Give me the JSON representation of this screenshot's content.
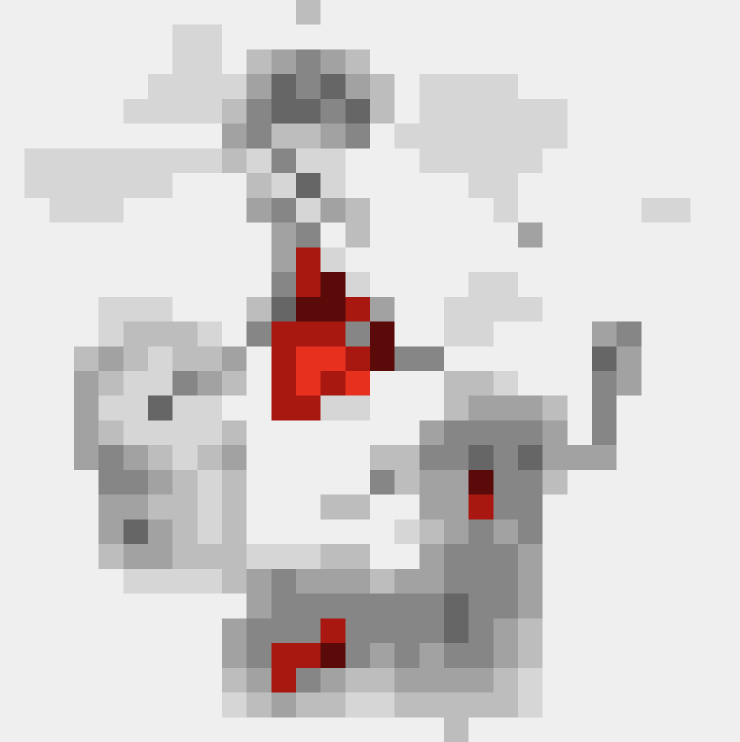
{
  "chart_data": {
    "type": "heatmap",
    "colors": [
      "#ffffff",
      "#efefef",
      "#d6d6d6",
      "#bdbdbd",
      "#a2a2a2",
      "#868686",
      "#666666",
      "#4a4a4a",
      "#5a0a08",
      "#a81810",
      "#e8301f"
    ],
    "values": [
      [
        1,
        1,
        1,
        1,
        1,
        1,
        1,
        1,
        1,
        1,
        1,
        1,
        3,
        1,
        1,
        1,
        1,
        1,
        1,
        1,
        1,
        1,
        1,
        1,
        1,
        1,
        1,
        1,
        1,
        1
      ],
      [
        1,
        1,
        1,
        1,
        1,
        1,
        1,
        2,
        2,
        1,
        1,
        1,
        1,
        1,
        1,
        1,
        1,
        1,
        1,
        1,
        1,
        1,
        1,
        1,
        1,
        1,
        1,
        1,
        1,
        1
      ],
      [
        1,
        1,
        1,
        1,
        1,
        1,
        1,
        2,
        2,
        1,
        3,
        4,
        5,
        4,
        3,
        1,
        1,
        1,
        1,
        1,
        1,
        1,
        1,
        1,
        1,
        1,
        1,
        1,
        1,
        1
      ],
      [
        1,
        1,
        1,
        1,
        1,
        1,
        2,
        2,
        2,
        2,
        4,
        6,
        5,
        6,
        4,
        3,
        1,
        2,
        2,
        2,
        2,
        1,
        1,
        1,
        1,
        1,
        1,
        1,
        1,
        1
      ],
      [
        1,
        1,
        1,
        1,
        1,
        2,
        2,
        2,
        2,
        3,
        5,
        6,
        6,
        5,
        6,
        3,
        1,
        2,
        2,
        2,
        2,
        2,
        2,
        1,
        1,
        1,
        1,
        1,
        1,
        1
      ],
      [
        1,
        1,
        1,
        1,
        1,
        1,
        1,
        1,
        1,
        4,
        5,
        3,
        3,
        4,
        5,
        1,
        2,
        2,
        2,
        2,
        2,
        2,
        2,
        1,
        1,
        1,
        1,
        1,
        1,
        1
      ],
      [
        1,
        2,
        2,
        2,
        2,
        2,
        2,
        2,
        2,
        3,
        2,
        5,
        2,
        2,
        1,
        1,
        1,
        2,
        2,
        2,
        2,
        2,
        1,
        1,
        1,
        1,
        1,
        1,
        1,
        1
      ],
      [
        1,
        2,
        2,
        2,
        2,
        2,
        2,
        1,
        1,
        1,
        3,
        2,
        6,
        2,
        1,
        1,
        1,
        1,
        1,
        2,
        2,
        1,
        1,
        1,
        1,
        1,
        1,
        1,
        1,
        1
      ],
      [
        1,
        1,
        2,
        2,
        2,
        1,
        1,
        1,
        1,
        1,
        4,
        5,
        2,
        4,
        3,
        1,
        1,
        1,
        1,
        1,
        2,
        1,
        1,
        1,
        1,
        1,
        2,
        2,
        1,
        1
      ],
      [
        1,
        1,
        1,
        1,
        1,
        1,
        1,
        1,
        1,
        1,
        1,
        4,
        5,
        1,
        3,
        1,
        1,
        1,
        1,
        1,
        1,
        4,
        1,
        1,
        1,
        1,
        1,
        1,
        1,
        1
      ],
      [
        1,
        1,
        1,
        1,
        1,
        1,
        1,
        1,
        1,
        1,
        1,
        4,
        9,
        2,
        1,
        1,
        1,
        1,
        1,
        1,
        1,
        1,
        1,
        1,
        1,
        1,
        1,
        1,
        1,
        1
      ],
      [
        1,
        1,
        1,
        1,
        1,
        1,
        1,
        1,
        1,
        1,
        1,
        5,
        9,
        8,
        2,
        1,
        1,
        1,
        1,
        2,
        2,
        1,
        1,
        1,
        1,
        1,
        1,
        1,
        1,
        1
      ],
      [
        1,
        1,
        1,
        1,
        2,
        2,
        2,
        1,
        1,
        1,
        3,
        6,
        8,
        8,
        9,
        4,
        1,
        1,
        2,
        2,
        2,
        2,
        1,
        1,
        1,
        1,
        1,
        1,
        1,
        1
      ],
      [
        1,
        1,
        1,
        1,
        2,
        3,
        3,
        3,
        2,
        1,
        5,
        9,
        9,
        9,
        5,
        8,
        1,
        1,
        2,
        2,
        1,
        1,
        1,
        1,
        4,
        5,
        1,
        1,
        1,
        1
      ],
      [
        1,
        1,
        1,
        3,
        4,
        3,
        2,
        3,
        3,
        4,
        1,
        9,
        10,
        10,
        9,
        8,
        5,
        5,
        1,
        1,
        1,
        1,
        1,
        1,
        6,
        4,
        1,
        1,
        1,
        1
      ],
      [
        1,
        1,
        1,
        4,
        3,
        2,
        2,
        5,
        4,
        3,
        1,
        9,
        10,
        9,
        10,
        1,
        1,
        1,
        3,
        3,
        2,
        1,
        1,
        1,
        5,
        4,
        1,
        1,
        1,
        1
      ],
      [
        1,
        1,
        1,
        4,
        2,
        2,
        6,
        2,
        2,
        1,
        1,
        9,
        9,
        2,
        2,
        1,
        1,
        1,
        3,
        4,
        4,
        4,
        3,
        1,
        5,
        1,
        1,
        1,
        1,
        1
      ],
      [
        1,
        1,
        1,
        4,
        3,
        2,
        2,
        2,
        2,
        3,
        1,
        1,
        1,
        1,
        1,
        1,
        1,
        4,
        5,
        5,
        5,
        5,
        4,
        1,
        5,
        1,
        1,
        1,
        1,
        1
      ],
      [
        1,
        1,
        1,
        4,
        5,
        4,
        3,
        2,
        3,
        4,
        1,
        1,
        1,
        1,
        1,
        3,
        3,
        5,
        5,
        6,
        5,
        6,
        4,
        4,
        4,
        1,
        1,
        1,
        1,
        1
      ],
      [
        1,
        1,
        1,
        1,
        5,
        5,
        4,
        3,
        2,
        3,
        1,
        1,
        1,
        1,
        1,
        5,
        3,
        4,
        4,
        8,
        5,
        5,
        3,
        1,
        1,
        1,
        1,
        1,
        1,
        1
      ],
      [
        1,
        1,
        1,
        1,
        4,
        4,
        3,
        3,
        2,
        3,
        1,
        1,
        1,
        3,
        3,
        1,
        1,
        4,
        4,
        9,
        5,
        5,
        1,
        1,
        1,
        1,
        1,
        1,
        1,
        1
      ],
      [
        1,
        1,
        1,
        1,
        4,
        6,
        4,
        3,
        2,
        3,
        1,
        1,
        1,
        1,
        1,
        1,
        2,
        3,
        4,
        5,
        4,
        5,
        1,
        1,
        1,
        1,
        1,
        1,
        1,
        1
      ],
      [
        1,
        1,
        1,
        1,
        3,
        4,
        4,
        3,
        3,
        3,
        2,
        2,
        2,
        3,
        3,
        1,
        1,
        4,
        5,
        5,
        5,
        4,
        1,
        1,
        1,
        1,
        1,
        1,
        1,
        1
      ],
      [
        1,
        1,
        1,
        1,
        1,
        2,
        2,
        2,
        2,
        3,
        4,
        5,
        4,
        4,
        4,
        3,
        4,
        4,
        5,
        5,
        5,
        4,
        1,
        1,
        1,
        1,
        1,
        1,
        1,
        1
      ],
      [
        1,
        1,
        1,
        1,
        1,
        1,
        1,
        1,
        1,
        1,
        4,
        5,
        5,
        5,
        5,
        5,
        5,
        5,
        6,
        5,
        5,
        4,
        1,
        1,
        1,
        1,
        1,
        1,
        1,
        1
      ],
      [
        1,
        1,
        1,
        1,
        1,
        1,
        1,
        1,
        1,
        4,
        5,
        5,
        5,
        9,
        5,
        5,
        5,
        5,
        6,
        5,
        4,
        3,
        1,
        1,
        1,
        1,
        1,
        1,
        1,
        1
      ],
      [
        1,
        1,
        1,
        1,
        1,
        1,
        1,
        1,
        1,
        4,
        5,
        9,
        9,
        8,
        5,
        4,
        5,
        4,
        5,
        5,
        4,
        3,
        1,
        1,
        1,
        1,
        1,
        1,
        1,
        1
      ],
      [
        1,
        1,
        1,
        1,
        1,
        1,
        1,
        1,
        1,
        3,
        4,
        9,
        5,
        4,
        3,
        3,
        4,
        4,
        4,
        4,
        3,
        2,
        1,
        1,
        1,
        1,
        1,
        1,
        1,
        1
      ],
      [
        1,
        1,
        1,
        1,
        1,
        1,
        1,
        1,
        1,
        2,
        3,
        4,
        3,
        3,
        2,
        2,
        3,
        3,
        3,
        3,
        3,
        2,
        1,
        1,
        1,
        1,
        1,
        1,
        1,
        1
      ],
      [
        1,
        1,
        1,
        1,
        1,
        1,
        1,
        1,
        1,
        1,
        1,
        1,
        1,
        1,
        1,
        1,
        1,
        1,
        3,
        1,
        1,
        1,
        1,
        1,
        1,
        1,
        1,
        1,
        1,
        1
      ]
    ]
  }
}
